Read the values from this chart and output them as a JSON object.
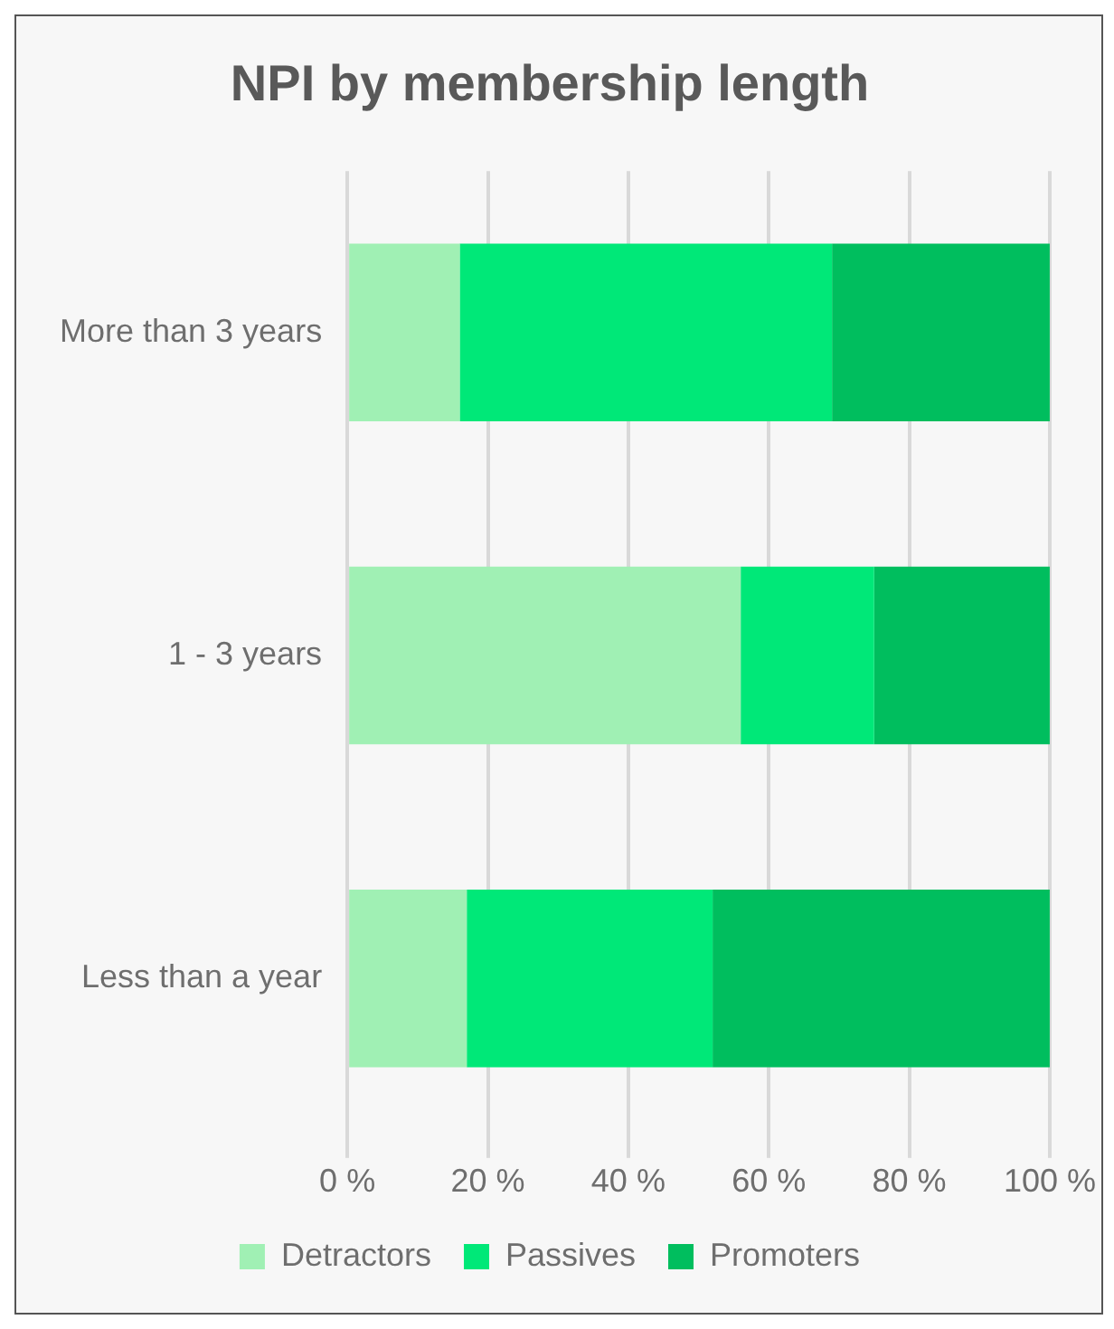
{
  "chart_data": {
    "type": "bar",
    "title": "NPI by membership length",
    "orientation": "horizontal",
    "stacked": true,
    "categories": [
      "More than 3 years",
      "1 - 3 years",
      "Less than a year"
    ],
    "series": [
      {
        "name": "Detractors",
        "color": "#a0f0b4",
        "values": [
          16,
          56,
          17
        ]
      },
      {
        "name": "Passives",
        "color": "#00e878",
        "values": [
          53,
          19,
          35
        ]
      },
      {
        "name": "Promoters",
        "color": "#00be5e",
        "values": [
          31,
          25,
          48
        ]
      }
    ],
    "xlim": [
      0,
      100
    ],
    "xticks": [
      {
        "value": 0,
        "label": "0 %"
      },
      {
        "value": 20,
        "label": "20 %"
      },
      {
        "value": 40,
        "label": "40 %"
      },
      {
        "value": 60,
        "label": "60 %"
      },
      {
        "value": 80,
        "label": "80 %"
      },
      {
        "value": 100,
        "label": "100 %"
      }
    ],
    "grid": "x",
    "legend": "bottom"
  }
}
